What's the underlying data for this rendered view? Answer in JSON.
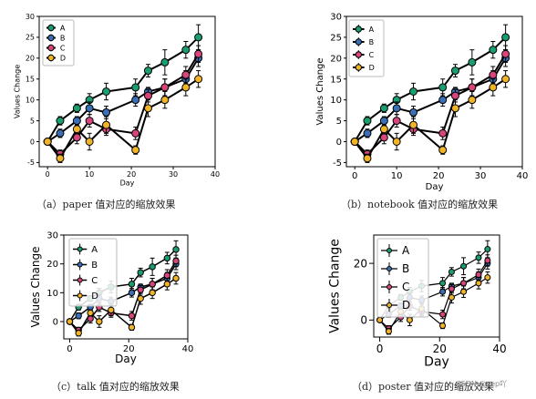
{
  "chart_data": [
    {
      "type": "line",
      "caption": "（a）paper 值对应的缩放效果",
      "xlabel": "Day",
      "ylabel": "Values Change",
      "xlim": [
        -2,
        40
      ],
      "ylim": [
        -6,
        30
      ],
      "xticks": [
        "0",
        "10",
        "20",
        "30",
        "40"
      ],
      "yticks": [
        "-5",
        "0",
        "5",
        "10",
        "15",
        "20",
        "25",
        "30"
      ],
      "legend_position": "top-left",
      "x": [
        0,
        3,
        7,
        10,
        14,
        21,
        24,
        28,
        33,
        36
      ],
      "series": [
        {
          "name": "A",
          "values": [
            0,
            5,
            8,
            10,
            12,
            13,
            17,
            19,
            22,
            25
          ],
          "errors": [
            0,
            1,
            1,
            1.5,
            2,
            2,
            1.5,
            3,
            2,
            3
          ]
        },
        {
          "name": "B",
          "values": [
            0,
            2,
            5,
            8,
            7,
            10,
            12,
            13,
            15,
            20
          ],
          "errors": [
            0,
            1,
            1,
            1.5,
            1.5,
            1.5,
            1,
            2,
            2,
            2
          ]
        },
        {
          "name": "C",
          "values": [
            0,
            -3,
            1,
            5,
            3,
            2,
            11,
            13,
            16,
            21
          ],
          "errors": [
            0,
            1,
            1.5,
            1.5,
            1.5,
            1.5,
            1.5,
            2,
            2,
            2
          ]
        },
        {
          "name": "D",
          "values": [
            0,
            -4,
            3,
            0,
            4,
            -2,
            8,
            10,
            13,
            15
          ],
          "errors": [
            0,
            1,
            1,
            2,
            2,
            1,
            2,
            2,
            2,
            2
          ]
        }
      ]
    },
    {
      "type": "line",
      "caption": "（b）notebook 值对应的缩放效果",
      "xlabel": "Day",
      "ylabel": "Values Change",
      "xlim": [
        -2,
        40
      ],
      "ylim": [
        -6,
        30
      ],
      "xticks": [
        "0",
        "10",
        "20",
        "30",
        "40"
      ],
      "yticks": [
        "-5",
        "0",
        "5",
        "10",
        "15",
        "20",
        "25",
        "30"
      ],
      "legend_position": "top-left",
      "x": [
        0,
        3,
        7,
        10,
        14,
        21,
        24,
        28,
        33,
        36
      ],
      "series": [
        {
          "name": "A",
          "values": [
            0,
            5,
            8,
            10,
            12,
            13,
            17,
            19,
            22,
            25
          ],
          "errors": [
            0,
            1,
            1,
            1.5,
            2,
            2,
            1.5,
            3,
            2,
            3
          ]
        },
        {
          "name": "B",
          "values": [
            0,
            2,
            5,
            8,
            7,
            10,
            12,
            13,
            15,
            20
          ],
          "errors": [
            0,
            1,
            1,
            1.5,
            1.5,
            1.5,
            1,
            2,
            2,
            2
          ]
        },
        {
          "name": "C",
          "values": [
            0,
            -3,
            1,
            5,
            3,
            2,
            11,
            13,
            16,
            21
          ],
          "errors": [
            0,
            1,
            1.5,
            1.5,
            1.5,
            1.5,
            1.5,
            2,
            2,
            2
          ]
        },
        {
          "name": "D",
          "values": [
            0,
            -4,
            3,
            0,
            4,
            -2,
            8,
            10,
            13,
            15
          ],
          "errors": [
            0,
            1,
            1,
            2,
            2,
            1,
            2,
            2,
            2,
            2
          ]
        }
      ]
    },
    {
      "type": "line",
      "caption": "（c）talk 值对应的缩放效果",
      "xlabel": "Day",
      "ylabel": "Values Change",
      "xlim": [
        -2,
        40
      ],
      "ylim": [
        -6,
        30
      ],
      "xticks": [
        "0",
        "20",
        "40"
      ],
      "yticks": [
        "0",
        "10",
        "20",
        "30"
      ],
      "legend_position": "top-left",
      "x": [
        0,
        3,
        7,
        10,
        14,
        21,
        24,
        28,
        33,
        36
      ],
      "series": [
        {
          "name": "A",
          "values": [
            0,
            5,
            8,
            10,
            12,
            13,
            17,
            19,
            22,
            25
          ],
          "errors": [
            0,
            1,
            1,
            1.5,
            2,
            2,
            1.5,
            3,
            2,
            3
          ]
        },
        {
          "name": "B",
          "values": [
            0,
            2,
            5,
            8,
            7,
            10,
            12,
            13,
            15,
            20
          ],
          "errors": [
            0,
            1,
            1,
            1.5,
            1.5,
            1.5,
            1,
            2,
            2,
            2
          ]
        },
        {
          "name": "C",
          "values": [
            0,
            -3,
            1,
            5,
            3,
            2,
            11,
            13,
            16,
            21
          ],
          "errors": [
            0,
            1,
            1.5,
            1.5,
            1.5,
            1.5,
            1.5,
            2,
            2,
            2
          ]
        },
        {
          "name": "D",
          "values": [
            0,
            -4,
            3,
            0,
            4,
            -2,
            8,
            10,
            13,
            15
          ],
          "errors": [
            0,
            1,
            1,
            2,
            2,
            1,
            2,
            2,
            2,
            2
          ]
        }
      ]
    },
    {
      "type": "line",
      "caption": "（d）poster 值对应的缩放效果",
      "xlabel": "Day",
      "ylabel": "Values Change",
      "xlim": [
        -2,
        40
      ],
      "ylim": [
        -6,
        30
      ],
      "xticks": [
        "0",
        "20",
        "40"
      ],
      "yticks": [
        "0",
        "20"
      ],
      "legend_position": "top-left",
      "x": [
        0,
        3,
        7,
        10,
        14,
        21,
        24,
        28,
        33,
        36
      ],
      "series": [
        {
          "name": "A",
          "values": [
            0,
            5,
            8,
            10,
            12,
            13,
            17,
            19,
            22,
            25
          ],
          "errors": [
            0,
            1,
            1,
            1.5,
            2,
            2,
            1.5,
            3,
            2,
            3
          ]
        },
        {
          "name": "B",
          "values": [
            0,
            2,
            5,
            8,
            7,
            10,
            12,
            13,
            15,
            20
          ],
          "errors": [
            0,
            1,
            1,
            1.5,
            1.5,
            1.5,
            1,
            2,
            2,
            2
          ]
        },
        {
          "name": "C",
          "values": [
            0,
            -3,
            1,
            5,
            3,
            2,
            11,
            13,
            16,
            21
          ],
          "errors": [
            0,
            1,
            1.5,
            1.5,
            1.5,
            1.5,
            1.5,
            2,
            2,
            2
          ]
        },
        {
          "name": "D",
          "values": [
            0,
            -4,
            3,
            0,
            4,
            -2,
            8,
            10,
            13,
            15
          ],
          "errors": [
            0,
            1,
            1,
            2,
            2,
            1,
            2,
            2,
            2,
            2
          ]
        }
      ]
    }
  ],
  "colors": {
    "A": "#1a9e6e",
    "B": "#3a6fb5",
    "C": "#d6457c",
    "D": "#f0b429"
  },
  "watermark": "CSDN @yep吖"
}
